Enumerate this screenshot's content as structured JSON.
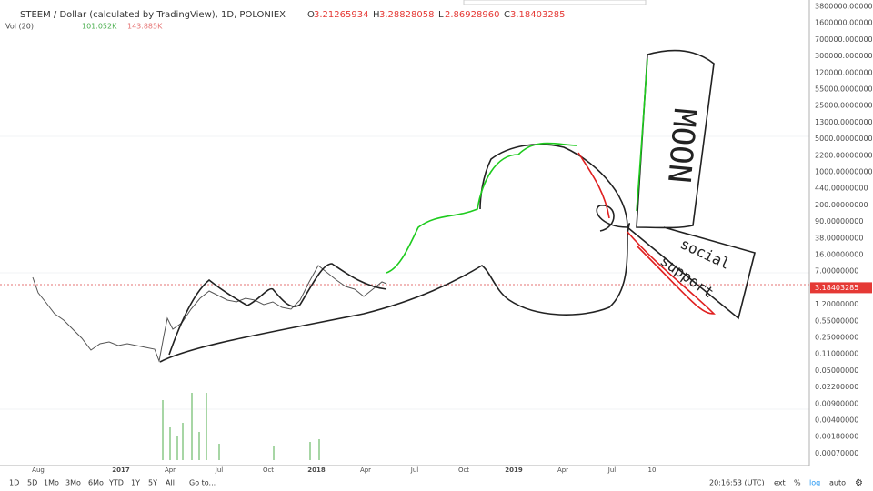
{
  "header": {
    "title": "STEEM / Dollar (calculated by TradingView), 1D, POLONIEX",
    "ohlc": [
      {
        "key": "O",
        "value": "3.21265934"
      },
      {
        "key": "H",
        "value": "3.28828058"
      },
      {
        "key": "L",
        "value": "2.86928960"
      },
      {
        "key": "C",
        "value": "3.18403285"
      }
    ],
    "volume": {
      "label": "Vol (20)",
      "values": [
        "101.052K",
        "143.885K"
      ]
    }
  },
  "price_axis": {
    "labels": [
      "3800000.00000000",
      "1600000.00000000",
      "700000.00000000",
      "300000.00000000",
      "120000.00000000",
      "55000.00000000",
      "25000.00000000",
      "13000.00000000",
      "5000.00000000",
      "2200.00000000",
      "1000.00000000",
      "440.00000000",
      "200.00000000",
      "90.00000000",
      "38.00000000",
      "16.00000000",
      "7.00000000",
      "3.18403285",
      "1.20000000",
      "0.55000000",
      "0.25000000",
      "0.11000000",
      "0.05000000",
      "0.02200000",
      "0.00900000",
      "0.00400000",
      "0.00180000",
      "0.00070000"
    ]
  },
  "time_axis": {
    "labels": [
      "Aug",
      "2017",
      "Apr",
      "Jul",
      "Oct",
      "2018",
      "Apr",
      "Jul",
      "Oct",
      "2019",
      "Apr",
      "Jul",
      "10"
    ]
  },
  "toolbar": {
    "ranges": [
      "1D",
      "5D",
      "1Mo",
      "3Mo",
      "6Mo",
      "YTD",
      "1Y",
      "5Y",
      "All"
    ],
    "goto": "Go to...",
    "clock": "20:16:53 (UTC)",
    "options": [
      "ext",
      "%",
      "log",
      "auto"
    ]
  },
  "annotations": [
    "MOON",
    "social",
    "support"
  ]
}
